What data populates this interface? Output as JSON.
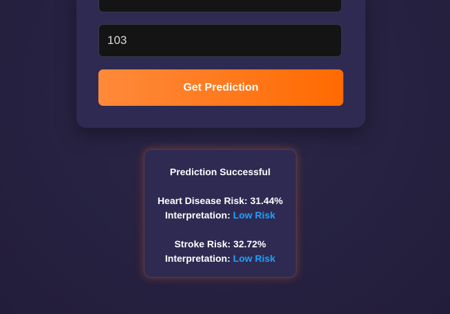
{
  "form": {
    "top_field_value": "",
    "main_field_value": "103",
    "submit_label": "Get Prediction"
  },
  "result": {
    "title": "Prediction Successful",
    "heart": {
      "label": "Heart Disease Risk: 31.44%",
      "interp_label": "Interpretation: ",
      "interp_value": "Low Risk"
    },
    "stroke": {
      "label": "Stroke Risk: 32.72%",
      "interp_label": "Interpretation: ",
      "interp_value": "Low Risk"
    }
  },
  "colors": {
    "background": "#27223f",
    "card": "#2e2a52",
    "accent_orange": "#ff7a1f",
    "risk_low": "#1aa3ff"
  }
}
